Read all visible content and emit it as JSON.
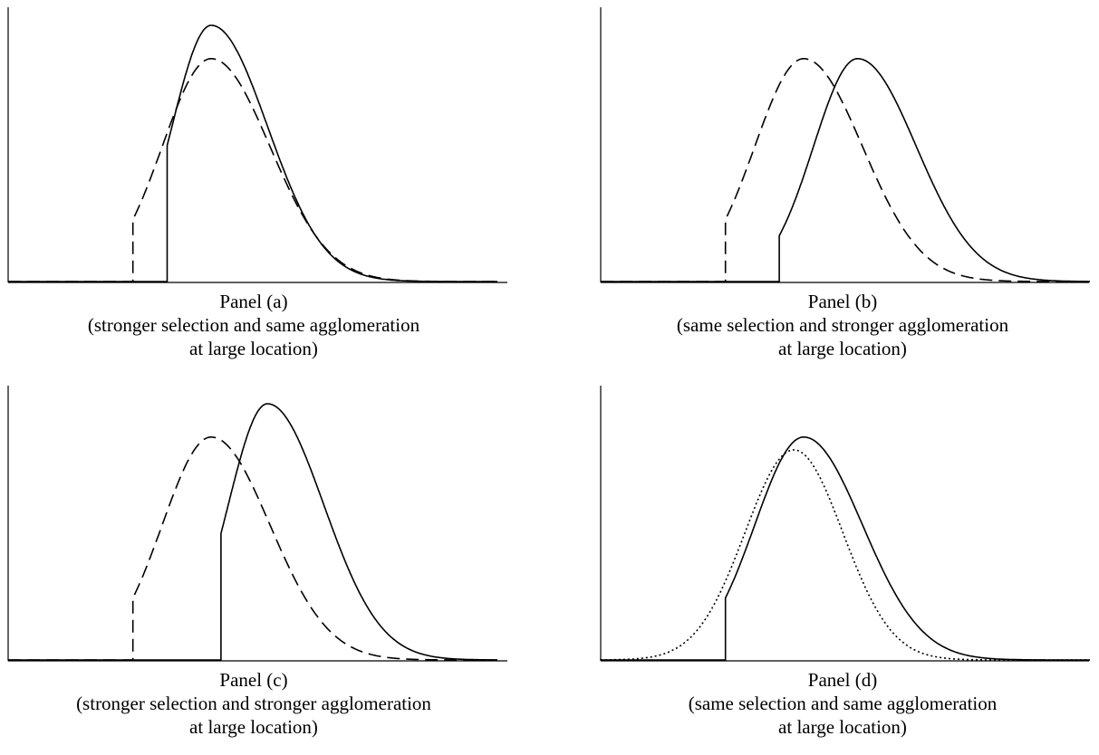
{
  "panels": [
    {
      "id": "a",
      "title": "Panel (a)",
      "caption_line1": "(stronger selection and same agglomeration",
      "caption_line2": "at large location)"
    },
    {
      "id": "b",
      "title": "Panel (b)",
      "caption_line1": "(same selection and stronger agglomeration",
      "caption_line2": "at large location)"
    },
    {
      "id": "c",
      "title": "Panel (c)",
      "caption_line1": "(stronger selection and stronger agglomeration",
      "caption_line2": "at large location)"
    },
    {
      "id": "d",
      "title": "Panel (d)",
      "caption_line1": "(same selection and same agglomeration",
      "caption_line2": "at large location)"
    }
  ],
  "chart_data": [
    {
      "type": "line",
      "panel": "a",
      "xlim": [
        0,
        1
      ],
      "ylim": [
        0,
        1
      ],
      "grid": false,
      "series": [
        {
          "style": "solid",
          "color": "#000000",
          "cutoff": 0.325,
          "peak_x": 0.415,
          "peak_y": 1.0,
          "width_left": 0.08,
          "width_right": 0.115
        },
        {
          "style": "dashed",
          "color": "#000000",
          "cutoff": 0.255,
          "peak_x": 0.415,
          "peak_y": 0.87,
          "width_left": 0.1,
          "width_right": 0.12
        }
      ]
    },
    {
      "type": "line",
      "panel": "b",
      "xlim": [
        0,
        1
      ],
      "ylim": [
        0,
        1
      ],
      "grid": false,
      "series": [
        {
          "style": "solid",
          "color": "#000000",
          "cutoff": 0.365,
          "peak_x": 0.525,
          "peak_y": 0.87,
          "width_left": 0.09,
          "width_right": 0.12
        },
        {
          "style": "dashed",
          "color": "#000000",
          "cutoff": 0.255,
          "peak_x": 0.415,
          "peak_y": 0.87,
          "width_left": 0.1,
          "width_right": 0.12
        }
      ]
    },
    {
      "type": "line",
      "panel": "c",
      "xlim": [
        0,
        1
      ],
      "ylim": [
        0,
        1
      ],
      "grid": false,
      "series": [
        {
          "style": "solid",
          "color": "#000000",
          "cutoff": 0.435,
          "peak_x": 0.53,
          "peak_y": 1.0,
          "width_left": 0.08,
          "width_right": 0.115
        },
        {
          "style": "dashed",
          "color": "#000000",
          "cutoff": 0.255,
          "peak_x": 0.415,
          "peak_y": 0.87,
          "width_left": 0.1,
          "width_right": 0.12
        }
      ]
    },
    {
      "type": "line",
      "panel": "d",
      "xlim": [
        0,
        1
      ],
      "ylim": [
        0,
        1
      ],
      "grid": false,
      "series": [
        {
          "style": "solid",
          "color": "#000000",
          "cutoff": 0.255,
          "peak_x": 0.415,
          "peak_y": 0.87,
          "width_left": 0.1,
          "width_right": 0.12
        },
        {
          "style": "dotted",
          "color": "#000000",
          "cutoff": 0.0,
          "peak_x": 0.395,
          "peak_y": 0.82,
          "width_left": 0.1,
          "width_right": 0.1
        }
      ]
    }
  ]
}
